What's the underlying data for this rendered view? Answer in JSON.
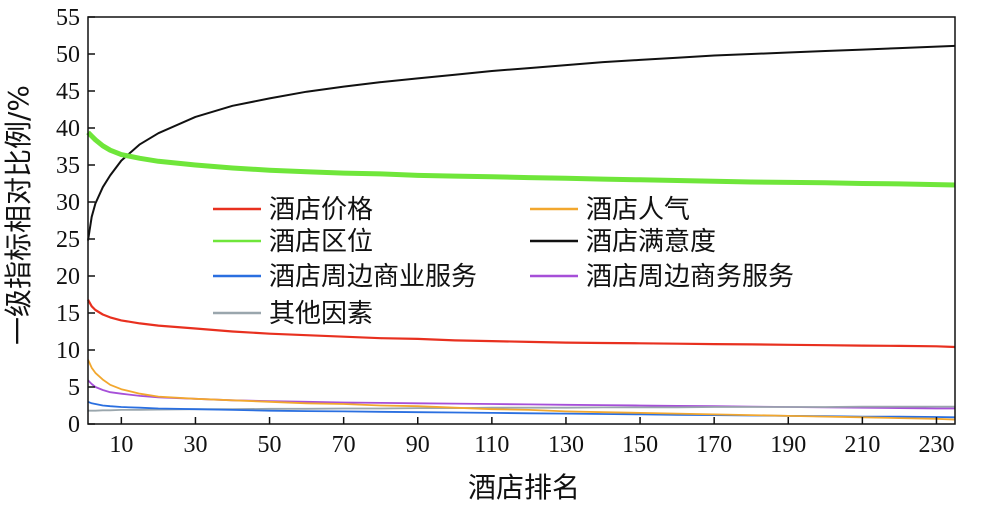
{
  "chart_data": {
    "type": "line",
    "xlabel": "酒店排名",
    "ylabel": "一级指标相对比例/%",
    "xlim": [
      1,
      235
    ],
    "ylim": [
      0,
      55
    ],
    "x_ticks": [
      10,
      30,
      50,
      70,
      90,
      110,
      130,
      150,
      170,
      190,
      210,
      230
    ],
    "y_ticks": [
      0,
      5,
      10,
      15,
      20,
      25,
      30,
      35,
      40,
      45,
      50,
      55
    ],
    "legend_placement": "center-left",
    "grid": false,
    "x": [
      1,
      2,
      3,
      5,
      7,
      10,
      15,
      20,
      30,
      40,
      50,
      60,
      70,
      80,
      90,
      100,
      110,
      120,
      130,
      140,
      150,
      160,
      170,
      180,
      190,
      200,
      210,
      220,
      230,
      235
    ],
    "series": [
      {
        "name": "酒店价格",
        "color": "#e8301f",
        "values": [
          16.8,
          15.9,
          15.4,
          14.8,
          14.4,
          14.0,
          13.6,
          13.3,
          12.9,
          12.5,
          12.2,
          12.0,
          11.8,
          11.6,
          11.5,
          11.3,
          11.2,
          11.1,
          11.0,
          10.95,
          10.9,
          10.85,
          10.8,
          10.75,
          10.7,
          10.65,
          10.6,
          10.55,
          10.5,
          10.4
        ]
      },
      {
        "name": "酒店人气",
        "color": "#f2a72e",
        "values": [
          8.7,
          7.6,
          6.9,
          6.0,
          5.3,
          4.7,
          4.1,
          3.7,
          3.4,
          3.2,
          3.0,
          2.8,
          2.7,
          2.5,
          2.4,
          2.2,
          2.0,
          1.9,
          1.7,
          1.6,
          1.5,
          1.4,
          1.3,
          1.2,
          1.1,
          1.0,
          0.9,
          0.8,
          0.7,
          0.6
        ]
      },
      {
        "name": "酒店区位",
        "color": "#6fe63a",
        "values": [
          39.4,
          38.9,
          38.4,
          37.6,
          37.0,
          36.4,
          35.9,
          35.5,
          35.0,
          34.6,
          34.3,
          34.1,
          33.9,
          33.8,
          33.6,
          33.5,
          33.4,
          33.3,
          33.2,
          33.1,
          33.0,
          32.9,
          32.8,
          32.7,
          32.65,
          32.6,
          32.5,
          32.45,
          32.35,
          32.3
        ]
      },
      {
        "name": "酒店满意度",
        "color": "#111111",
        "values": [
          24.8,
          28.0,
          29.8,
          32.0,
          33.6,
          35.6,
          37.8,
          39.3,
          41.5,
          43.0,
          44.0,
          44.9,
          45.6,
          46.2,
          46.7,
          47.2,
          47.7,
          48.1,
          48.5,
          48.9,
          49.2,
          49.5,
          49.8,
          50.0,
          50.2,
          50.4,
          50.6,
          50.8,
          51.0,
          51.1
        ]
      },
      {
        "name": "酒店周边商业服务",
        "color": "#2a6fe0",
        "values": [
          3.0,
          2.8,
          2.7,
          2.5,
          2.4,
          2.3,
          2.2,
          2.1,
          2.0,
          1.9,
          1.8,
          1.75,
          1.7,
          1.65,
          1.6,
          1.55,
          1.5,
          1.45,
          1.4,
          1.35,
          1.3,
          1.25,
          1.2,
          1.15,
          1.1,
          1.05,
          1.0,
          1.0,
          0.95,
          0.9
        ]
      },
      {
        "name": "酒店周边商务服务",
        "color": "#a64fd8",
        "values": [
          5.9,
          5.4,
          5.0,
          4.6,
          4.3,
          4.1,
          3.8,
          3.6,
          3.4,
          3.2,
          3.1,
          3.0,
          2.9,
          2.85,
          2.8,
          2.75,
          2.7,
          2.65,
          2.6,
          2.55,
          2.5,
          2.45,
          2.4,
          2.35,
          2.3,
          2.25,
          2.2,
          2.15,
          2.1,
          2.1
        ]
      },
      {
        "name": "其他因素",
        "color": "#9aa6ad",
        "values": [
          1.8,
          1.8,
          1.8,
          1.85,
          1.85,
          1.9,
          1.9,
          1.95,
          2.0,
          2.0,
          2.05,
          2.05,
          2.1,
          2.1,
          2.15,
          2.15,
          2.2,
          2.2,
          2.2,
          2.25,
          2.25,
          2.25,
          2.3,
          2.3,
          2.3,
          2.3,
          2.35,
          2.35,
          2.35,
          2.35
        ]
      }
    ],
    "draw_order": [
      5,
      6,
      4,
      1,
      0,
      3,
      2
    ]
  }
}
